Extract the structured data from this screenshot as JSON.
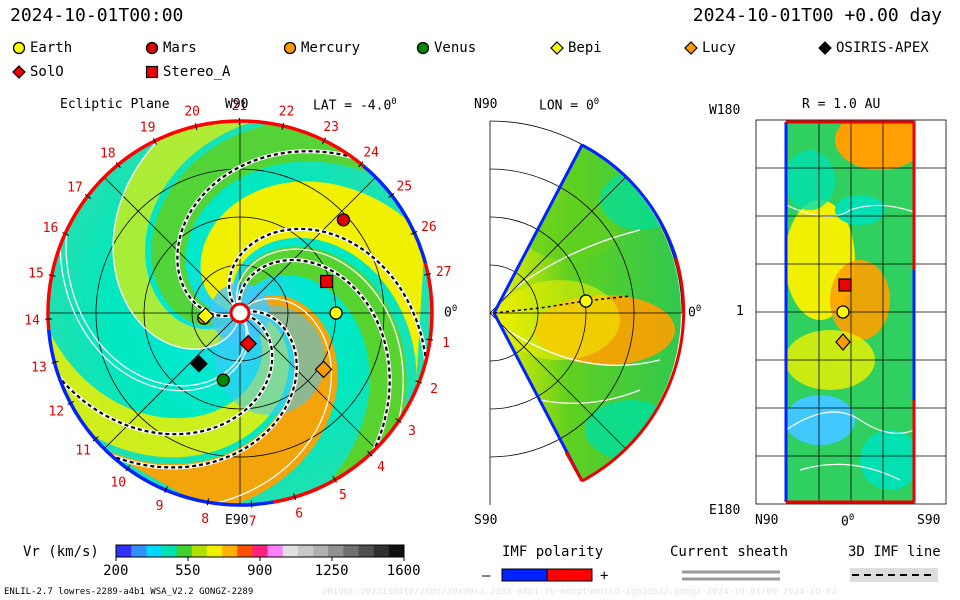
{
  "header": {
    "date_left": "2024-10-01T00:00",
    "date_right": "2024-10-01T00 +0.00 day"
  },
  "legend": [
    {
      "name": "Earth",
      "marker": "circle",
      "color": "#ffff00"
    },
    {
      "name": "Mars",
      "marker": "circle",
      "color": "#dd0000"
    },
    {
      "name": "Mercury",
      "marker": "circle",
      "color": "#ff9900"
    },
    {
      "name": "Venus",
      "marker": "circle",
      "color": "#008800"
    },
    {
      "name": "Bepi",
      "marker": "diamond",
      "color": "#ffff00"
    },
    {
      "name": "Lucy",
      "marker": "diamond",
      "color": "#ff9900"
    },
    {
      "name": "OSIRIS-APEX",
      "marker": "diamond",
      "color": "#000000"
    },
    {
      "name": "SolO",
      "marker": "diamond",
      "color": "#ee0000"
    },
    {
      "name": "Stereo_A",
      "marker": "square",
      "color": "#ee0000"
    }
  ],
  "panels": {
    "ecliptic": {
      "title": "Ecliptic Plane",
      "lat_label": "LAT = -4.0",
      "degree": "0",
      "top_label": "W90",
      "bottom_label": "E90",
      "right_label": "0",
      "carrington_ticks": [
        "1",
        "2",
        "3",
        "4",
        "5",
        "6",
        "7",
        "8",
        "9",
        "10",
        "11",
        "12",
        "13",
        "14",
        "15",
        "16",
        "17",
        "18",
        "19",
        "20",
        "21",
        "22",
        "23",
        "24",
        "25",
        "26",
        "27"
      ]
    },
    "meridional": {
      "top_left": "N90",
      "lon_label": "LON = 0",
      "degree": "0",
      "bottom_left": "S90",
      "right_label": "0"
    },
    "sphere": {
      "top_left": "W180",
      "r_label": "R = 1.0 AU",
      "left_mid": "1",
      "bottom_left": "E180",
      "x_left": "N90",
      "x_mid": "0",
      "x_right": "S90"
    }
  },
  "footer": {
    "vr_label": "Vr (km/s)",
    "colorbar_ticks": [
      "200",
      "550",
      "900",
      "1250",
      "1600"
    ],
    "imf_title": "IMF polarity",
    "imf_minus": "–",
    "imf_plus": "+",
    "sheath_title": "Current sheath",
    "imf3d_title": "3D IMF line",
    "model_info": "ENLIL-2.7 lowres-2289-a4b1 WSA_V2.2 GONGZ-2289",
    "run_info": "UNIQUE:20231384t0/268d/30x90x1.2289-a4b1.f6-mooptumnfcd-1g63d5d2.gongz-2024-10-01T00   2024-10-02"
  },
  "chart_data": {
    "type": "heatmap",
    "title": "Vr (km/s)",
    "colorscale_range": [
      200,
      1600
    ],
    "colorbar_ticks": [
      200,
      550,
      900,
      1250,
      1600
    ],
    "colors": {
      "low": "#40c8ff",
      "mid": "#00e8c8",
      "green": "#60d020",
      "yellow": "#f0f000",
      "orange": "#ffa000",
      "polarity_negative": "#0022ff",
      "polarity_positive": "#ff0000"
    },
    "ecliptic_bodies": [
      {
        "name": "Earth",
        "radius_au": 1.0,
        "lon_deg": 0
      },
      {
        "name": "Mars",
        "radius_au": 1.45,
        "lon_deg": 42
      },
      {
        "name": "Mercury",
        "radius_au": 0.38,
        "lon_deg": 188
      },
      {
        "name": "Venus",
        "radius_au": 0.72,
        "lon_deg": 256
      },
      {
        "name": "Bepi",
        "radius_au": 0.36,
        "lon_deg": 185
      },
      {
        "name": "Lucy",
        "radius_au": 1.05,
        "lon_deg": -34
      },
      {
        "name": "OSIRIS-APEX",
        "radius_au": 0.68,
        "lon_deg": 231
      },
      {
        "name": "SolO",
        "radius_au": 0.33,
        "lon_deg": 285
      },
      {
        "name": "Stereo_A",
        "radius_au": 0.96,
        "lon_deg": 20
      }
    ]
  }
}
